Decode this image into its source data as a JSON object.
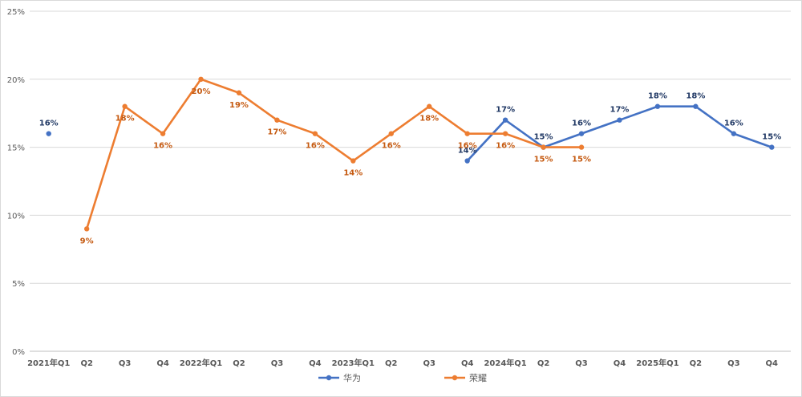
{
  "chart_data": {
    "type": "line",
    "title": "",
    "xlabel": "",
    "ylabel": "",
    "ylim": [
      0,
      25
    ],
    "y_ticks": [
      "0%",
      "5%",
      "10%",
      "15%",
      "20%",
      "25%"
    ],
    "grid": "horizontal",
    "legend_position": "bottom",
    "categories": [
      "2021年Q1",
      "Q2",
      "Q3",
      "Q4",
      "2022年Q1",
      "Q2",
      "Q3",
      "Q4",
      "2023年Q1",
      "Q2",
      "Q3",
      "Q4",
      "2024年Q1",
      "Q2",
      "Q3",
      "Q4",
      "2025年Q1",
      "Q2",
      "Q3",
      "Q4"
    ],
    "series": [
      {
        "name": "华为",
        "color": "#4472C4",
        "label_color": "#203864",
        "values": [
          16,
          null,
          null,
          null,
          null,
          null,
          null,
          null,
          null,
          null,
          null,
          14,
          17,
          15,
          16,
          17,
          18,
          18,
          16,
          15
        ],
        "labels": [
          "16%",
          null,
          null,
          null,
          null,
          null,
          null,
          null,
          null,
          null,
          null,
          "14%",
          "17%",
          "15%",
          "16%",
          "17%",
          "18%",
          "18%",
          "16%",
          "15%"
        ]
      },
      {
        "name": "荣耀",
        "color": "#ED7D31",
        "label_color": "#C55A11",
        "values": [
          null,
          9,
          18,
          16,
          20,
          19,
          17,
          16,
          14,
          16,
          18,
          16,
          16,
          15,
          15,
          null,
          null,
          null,
          null,
          null
        ],
        "labels": [
          null,
          "9%",
          "18%",
          "16%",
          "20%",
          "19%",
          "17%",
          "16%",
          "14%",
          "16%",
          "18%",
          "16%",
          "16%",
          "15%",
          "15%",
          null,
          null,
          null,
          null,
          null
        ]
      }
    ]
  }
}
